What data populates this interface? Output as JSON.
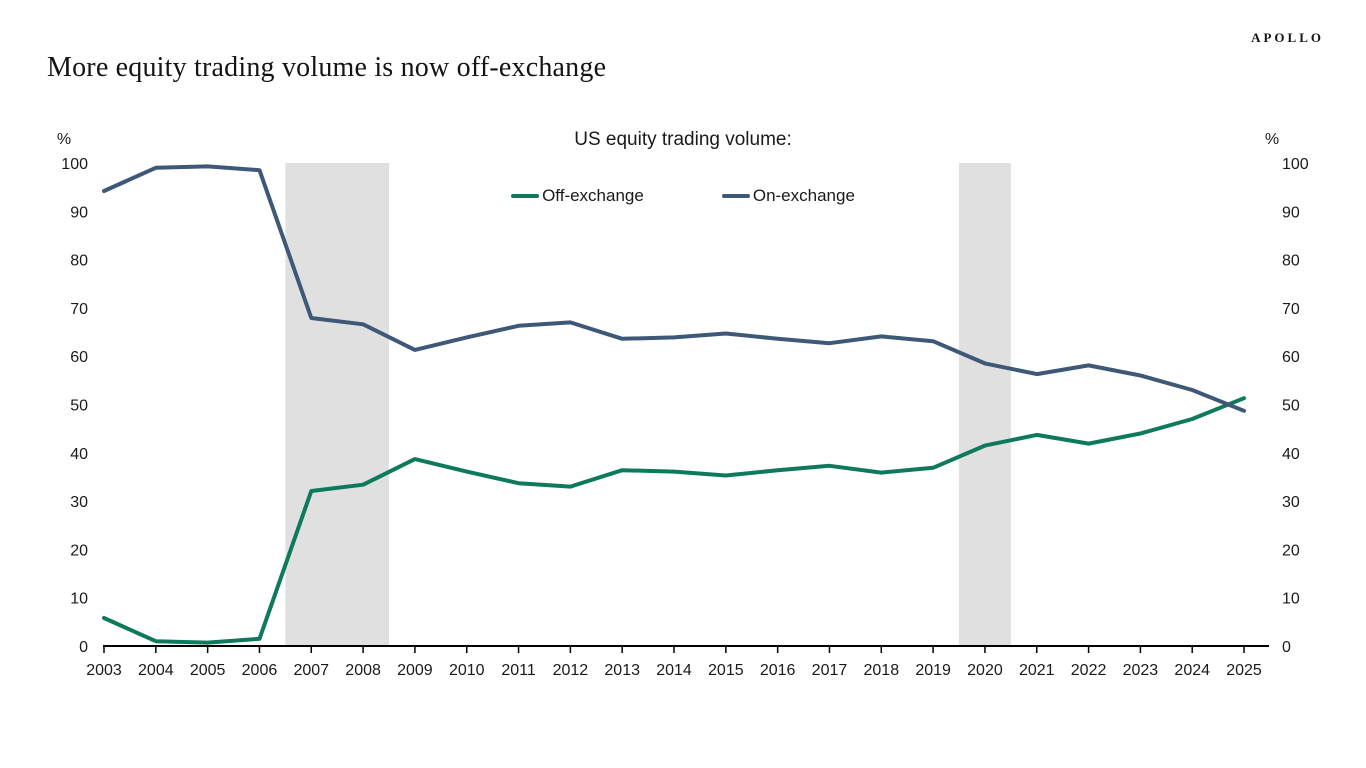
{
  "brand": {
    "logo_text": "APOLLO"
  },
  "page": {
    "title": "More equity trading volume is now off-exchange"
  },
  "chart_data": {
    "type": "line",
    "title": "US equity trading volume:",
    "y_unit": "%",
    "ylim": [
      0,
      100
    ],
    "ytick_step": 10,
    "grid": "off",
    "legend_position": "top-center",
    "dual_y_axis_labels": true,
    "years": [
      2003,
      2004,
      2005,
      2006,
      2007,
      2008,
      2009,
      2010,
      2011,
      2012,
      2013,
      2014,
      2015,
      2016,
      2017,
      2018,
      2019,
      2020,
      2021,
      2022,
      2023,
      2024,
      2025
    ],
    "series": [
      {
        "name": "Off-exchange",
        "color": "#0e7a5c",
        "values": [
          5.8,
          1.0,
          0.7,
          1.5,
          32.1,
          33.4,
          38.7,
          36.1,
          33.7,
          33.0,
          36.4,
          36.1,
          35.3,
          36.4,
          37.3,
          35.9,
          36.9,
          41.5,
          43.7,
          41.9,
          44.0,
          47.0,
          51.3
        ]
      },
      {
        "name": "On-exchange",
        "color": "#3e5878",
        "values": [
          94.2,
          99.0,
          99.3,
          98.5,
          67.9,
          66.6,
          61.3,
          63.9,
          66.3,
          67.0,
          63.6,
          63.9,
          64.7,
          63.6,
          62.7,
          64.1,
          63.1,
          58.5,
          56.3,
          58.1,
          56.0,
          53.0,
          48.7
        ]
      }
    ],
    "shaded_regions": [
      {
        "from": 2006.5,
        "to": 2008.5
      },
      {
        "from": 2019.5,
        "to": 2020.5
      }
    ],
    "shade_color": "#e0e0e0",
    "axis_color": "#000000"
  }
}
